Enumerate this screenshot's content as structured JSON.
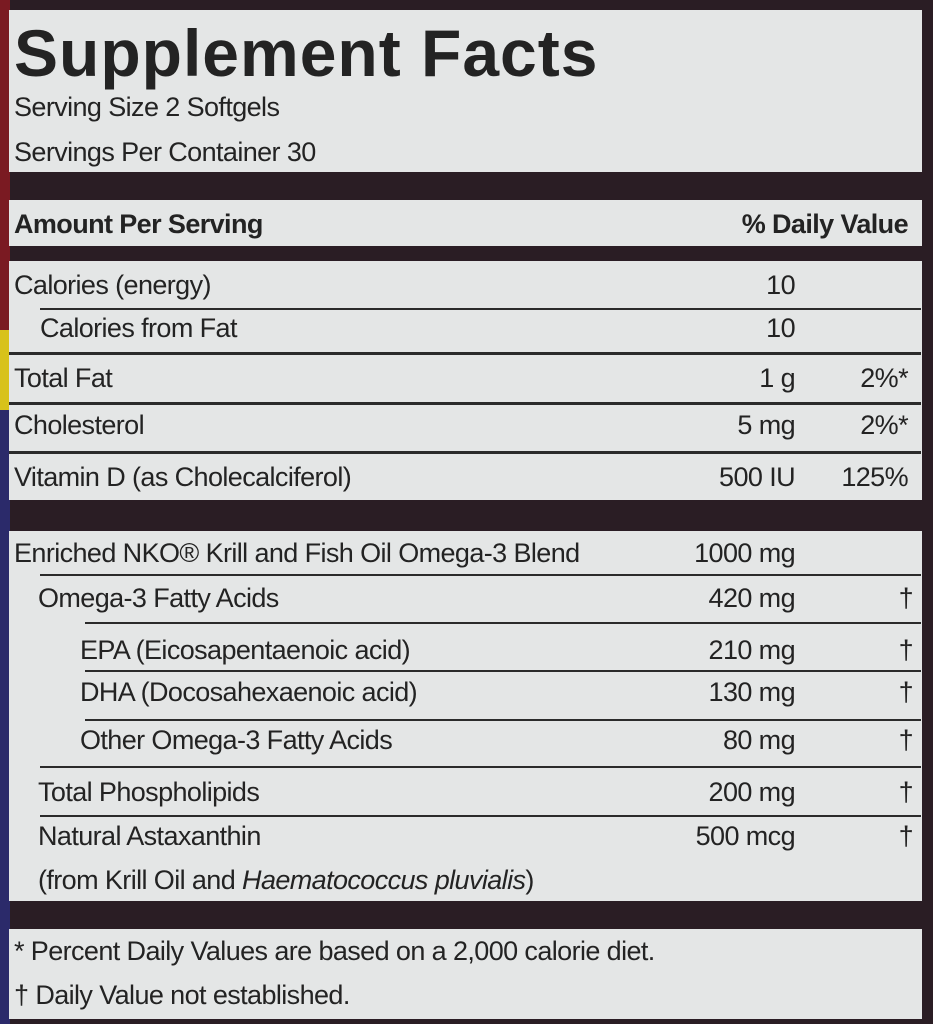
{
  "title": "Supplement Facts",
  "serving_size": "Serving Size 2 Softgels",
  "servings_per_container": "Servings Per Container 30",
  "header": {
    "amount": "Amount Per Serving",
    "daily_value": "% Daily Value"
  },
  "nutrients": [
    {
      "name": "Calories (energy)",
      "amount": "10",
      "dv": ""
    },
    {
      "name": "Calories from Fat",
      "amount": "10",
      "dv": ""
    },
    {
      "name": "Total Fat",
      "amount": "1 g",
      "dv": "2%*"
    },
    {
      "name": "Cholesterol",
      "amount": "5 mg",
      "dv": "2%*"
    },
    {
      "name": "Vitamin D (as Cholecalciferol)",
      "amount": "500 IU",
      "dv": "125%"
    }
  ],
  "blend": [
    {
      "name": "Enriched NKO® Krill and Fish Oil Omega-3 Blend",
      "amount": "1000 mg",
      "dv": ""
    },
    {
      "name": "Omega-3 Fatty Acids",
      "amount": "420 mg",
      "dv": "†"
    },
    {
      "name": "EPA (Eicosapentaenoic acid)",
      "amount": "210 mg",
      "dv": "†"
    },
    {
      "name": "DHA (Docosahexaenoic acid)",
      "amount": "130 mg",
      "dv": "†"
    },
    {
      "name": "Other Omega-3 Fatty Acids",
      "amount": "80 mg",
      "dv": "†"
    },
    {
      "name": "Total Phospholipids",
      "amount": "200 mg",
      "dv": "†"
    },
    {
      "name": "Natural Astaxanthin",
      "amount": "500 mcg",
      "dv": "†"
    }
  ],
  "astaxanthin_source": {
    "prefix": "(from Krill Oil and ",
    "species": "Haematococcus pluvialis",
    "suffix": ")"
  },
  "footnotes": [
    "* Percent Daily Values are based on a 2,000 calorie diet.",
    "† Daily Value not established."
  ],
  "colors": {
    "panel": "#e4e6e6",
    "bars": "#1e1a1c",
    "text": "#232323"
  }
}
